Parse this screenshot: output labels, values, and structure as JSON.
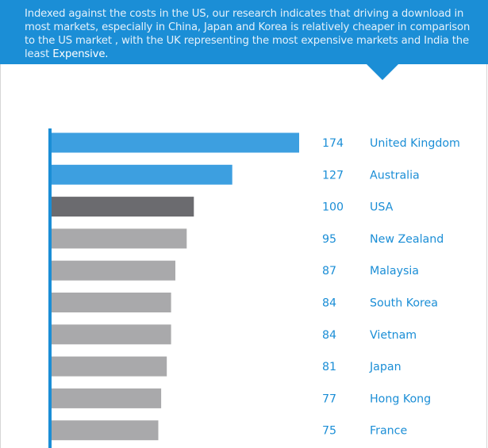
{
  "banner": {
    "text_main": "Indexed against the costs in the US, our research indicates that driving a download in most markets, especially in China, Japan and Korea is relatively cheaper in comparison to the US market , with the UK representing the most expensive markets and India the least ",
    "text_emphasis": "Expensive."
  },
  "colors": {
    "banner": "#1b8ed6",
    "highlight_bar": "#3d9fe0",
    "reference_bar": "#6b6b6f",
    "other_bar": "#a9a9ab",
    "axis": "#1b8ed6",
    "label_text": "#1b8ed6"
  },
  "chart_data": {
    "type": "bar",
    "orientation": "horizontal",
    "categories": [
      "United Kingdom",
      "Australia",
      "USA",
      "New Zealand",
      "Malaysia",
      "South Korea",
      "Vietnam",
      "Japan",
      "Hong Kong",
      "France"
    ],
    "values": [
      174,
      127,
      100,
      95,
      87,
      84,
      84,
      81,
      77,
      75
    ],
    "value_labels": [
      "174",
      "127",
      "100",
      "95",
      "87",
      "84",
      "84",
      "81",
      "77",
      "75"
    ],
    "bar_groups": [
      "highlight",
      "highlight",
      "reference",
      "other",
      "other",
      "other",
      "other",
      "other",
      "other",
      "other"
    ],
    "title": "",
    "xlabel": "",
    "ylabel": "",
    "grid": false,
    "legend": "none"
  }
}
